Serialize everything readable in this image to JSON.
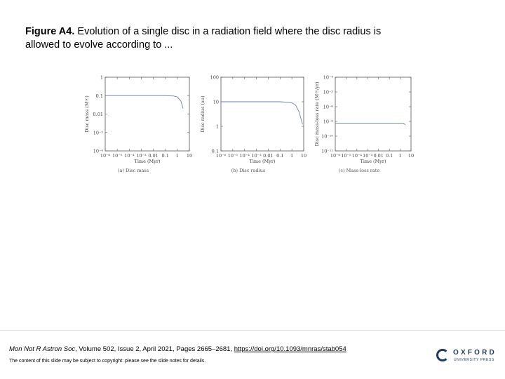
{
  "caption": {
    "bold": "Figure A4.",
    "text": " Evolution of a single disc in a radiation field where the disc radius is allowed to evolve according to ..."
  },
  "citation": {
    "journal": "Mon Not R Astron Soc",
    "details": ", Volume 502, Issue 2, April 2021, Pages 2665–2681, ",
    "doi": "https://doi.org/10.1093/mnras/stab054"
  },
  "copyright": "The content of this slide may be subject to copyright: please see the slide notes for details.",
  "logo": {
    "name": "OXFORD",
    "press": "UNIVERSITY PRESS",
    "color": "#1f3c5c"
  },
  "chart_data": [
    {
      "type": "line",
      "caption": "(a) Disc mass",
      "xlabel": "Time (Myr)",
      "ylabel": "Disc mass (M☉)",
      "xscale": "log",
      "yscale": "log",
      "xlim": [
        1e-06,
        10
      ],
      "ylim": [
        0.0001,
        1
      ],
      "x_ticks": [
        "10⁻⁶",
        "10⁻⁵",
        "10⁻⁴",
        "10⁻³",
        "0.01",
        "0.1",
        "1",
        "10"
      ],
      "y_ticks": [
        "10⁻⁴",
        "10⁻³",
        "0.01",
        "0.1",
        "1"
      ],
      "series": [
        {
          "x": [
            1e-06,
            0.1,
            0.5,
            1,
            2,
            3
          ],
          "y": [
            0.1,
            0.1,
            0.095,
            0.085,
            0.05,
            0.02
          ]
        }
      ]
    },
    {
      "type": "line",
      "caption": "(b) Disc radius",
      "xlabel": "Time (Myr)",
      "ylabel": "Disc radius (au)",
      "xscale": "log",
      "yscale": "log",
      "xlim": [
        1e-06,
        10
      ],
      "ylim": [
        0.1,
        100
      ],
      "x_ticks": [
        "10⁻⁶",
        "10⁻⁵",
        "10⁻⁴",
        "10⁻³",
        "0.01",
        "0.1",
        "1",
        "10"
      ],
      "y_ticks": [
        "0.1",
        "1",
        "10",
        "100"
      ],
      "series": [
        {
          "x": [
            1e-06,
            0.1,
            0.5,
            1,
            2,
            4,
            8
          ],
          "y": [
            10,
            10,
            9.5,
            9,
            7.5,
            4,
            1.2
          ]
        }
      ]
    },
    {
      "type": "line",
      "caption": "(c) Mass-loss rate",
      "xlabel": "Time (Myr)",
      "ylabel": "Disc mass-loss rate (M☉/yr)",
      "xscale": "log",
      "yscale": "log",
      "xlim": [
        1e-06,
        10
      ],
      "ylim": [
        1e-12,
        0.0001
      ],
      "x_ticks": [
        "10⁻⁶",
        "10⁻⁵",
        "10⁻⁴",
        "10⁻³",
        "0.01",
        "0.1",
        "1",
        "10"
      ],
      "y_ticks": [
        "10⁻¹²",
        "10⁻¹⁰",
        "10⁻⁸",
        "10⁻⁶",
        "10⁻⁵",
        "10⁻⁴"
      ],
      "series": [
        {
          "x": [
            1e-06,
            1,
            2,
            3
          ],
          "y": [
            1e-09,
            1e-09,
            1e-09,
            7e-10
          ]
        }
      ]
    }
  ]
}
